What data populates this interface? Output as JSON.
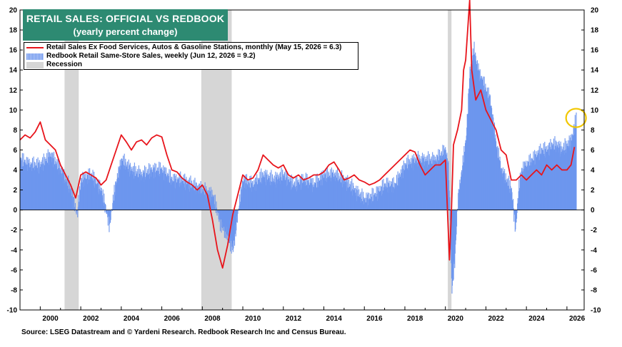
{
  "title": {
    "line1": "RETAIL SALES: OFFICIAL VS REDBOOK",
    "line2": "(yearly percent change)"
  },
  "legend": [
    {
      "label": "Retail Sales Ex Food Services, Autos & Gasoline Stations, monthly (May 15, 2026 = 6.3)",
      "color": "#e8141b",
      "kind": "line"
    },
    {
      "label": "Redbook Retail Same-Store Sales, weekly (Jun 12, 2026 = 9.2)",
      "color": "#6d96ee",
      "kind": "bars"
    },
    {
      "label": "Recession",
      "color": "#d6d6d6",
      "kind": "band"
    }
  ],
  "source": "Source: LSEG Datastream and © Yardeni Research. Redbook Research Inc and Census Bureau.",
  "colors": {
    "official": "#e8141b",
    "redbook": "#6d96ee",
    "recession": "#d6d6d6",
    "highlight": "#f2c700"
  },
  "chart_data": {
    "type": "line",
    "xlim": [
      1999.0,
      2026.85
    ],
    "ylim": [
      -10,
      20
    ],
    "x_ticks": [
      "2000",
      "2002",
      "2004",
      "2006",
      "2008",
      "2010",
      "2012",
      "2014",
      "2016",
      "2018",
      "2020",
      "2022",
      "2024",
      "2026"
    ],
    "y_ticks": [
      "-10",
      "-8",
      "-6",
      "-4",
      "-2",
      "0",
      "2",
      "4",
      "6",
      "8",
      "10",
      "12",
      "14",
      "16",
      "18",
      "20"
    ],
    "grid": false,
    "legend_position": "top-left",
    "recessions": [
      [
        2001.2,
        2001.9
      ],
      [
        2007.95,
        2009.45
      ],
      [
        2020.12,
        2020.3
      ]
    ],
    "highlight": {
      "x": 2026.45,
      "y": 9.2
    },
    "series": [
      {
        "name": "Retail Sales Ex Food Services, Autos & Gasoline Stations, monthly (May 15, 2026 = 6.3)",
        "type": "line",
        "x": [
          1999.0,
          1999.25,
          1999.5,
          1999.75,
          2000.0,
          2000.25,
          2000.5,
          2000.75,
          2001.0,
          2001.25,
          2001.5,
          2001.75,
          2002.0,
          2002.25,
          2002.5,
          2002.75,
          2003.0,
          2003.25,
          2003.5,
          2003.75,
          2004.0,
          2004.25,
          2004.5,
          2004.75,
          2005.0,
          2005.25,
          2005.5,
          2005.75,
          2006.0,
          2006.25,
          2006.5,
          2006.75,
          2007.0,
          2007.25,
          2007.5,
          2007.75,
          2008.0,
          2008.25,
          2008.5,
          2008.75,
          2009.0,
          2009.25,
          2009.5,
          2009.75,
          2010.0,
          2010.25,
          2010.5,
          2010.75,
          2011.0,
          2011.25,
          2011.5,
          2011.75,
          2012.0,
          2012.25,
          2012.5,
          2012.75,
          2013.0,
          2013.25,
          2013.5,
          2013.75,
          2014.0,
          2014.25,
          2014.5,
          2014.75,
          2015.0,
          2015.25,
          2015.5,
          2015.75,
          2016.0,
          2016.25,
          2016.5,
          2016.75,
          2017.0,
          2017.25,
          2017.5,
          2017.75,
          2018.0,
          2018.25,
          2018.5,
          2018.75,
          2019.0,
          2019.25,
          2019.5,
          2019.75,
          2020.0,
          2020.2,
          2020.3,
          2020.4,
          2020.6,
          2020.8,
          2020.9,
          2021.0,
          2021.2,
          2021.3,
          2021.5,
          2021.75,
          2022.0,
          2022.25,
          2022.5,
          2022.75,
          2023.0,
          2023.25,
          2023.5,
          2023.75,
          2024.0,
          2024.25,
          2024.5,
          2024.75,
          2025.0,
          2025.25,
          2025.5,
          2025.75,
          2026.0,
          2026.2,
          2026.37
        ],
        "values": [
          7.0,
          7.5,
          7.2,
          7.8,
          8.8,
          7.0,
          6.5,
          6.0,
          4.5,
          3.5,
          2.5,
          1.2,
          3.5,
          3.8,
          3.5,
          3.2,
          2.5,
          3.0,
          4.5,
          6.0,
          7.5,
          6.8,
          6.0,
          6.8,
          7.0,
          6.5,
          7.2,
          7.5,
          7.3,
          5.5,
          4.0,
          3.8,
          3.2,
          2.8,
          2.5,
          2.0,
          2.5,
          1.5,
          -1.0,
          -4.0,
          -5.8,
          -3.5,
          -0.5,
          1.5,
          3.5,
          3.0,
          3.2,
          4.0,
          5.5,
          5.0,
          4.5,
          4.2,
          4.5,
          3.5,
          3.2,
          3.5,
          3.0,
          3.2,
          3.5,
          3.5,
          3.8,
          4.5,
          4.8,
          4.0,
          3.0,
          3.2,
          3.5,
          3.0,
          2.8,
          2.5,
          2.7,
          3.0,
          3.5,
          4.0,
          4.5,
          5.0,
          5.5,
          6.0,
          5.8,
          4.5,
          3.5,
          4.0,
          4.5,
          4.5,
          5.0,
          -5.0,
          0.0,
          6.5,
          8.0,
          10.0,
          14.0,
          15.0,
          21.0,
          14.0,
          11.0,
          12.0,
          10.0,
          9.0,
          8.0,
          6.0,
          5.5,
          3.0,
          3.0,
          3.5,
          3.0,
          3.5,
          4.0,
          3.5,
          4.5,
          4.0,
          4.5,
          4.0,
          4.0,
          4.5,
          6.3
        ]
      },
      {
        "name": "Redbook Retail Same-Store Sales, weekly (Jun 12, 2026 = 9.2)",
        "type": "bar",
        "x": [
          1999.0,
          1999.5,
          2000.0,
          2000.5,
          2001.0,
          2001.5,
          2001.8,
          2002.0,
          2002.5,
          2003.0,
          2003.4,
          2003.7,
          2004.0,
          2004.5,
          2005.0,
          2005.5,
          2006.0,
          2006.5,
          2007.0,
          2007.5,
          2008.0,
          2008.5,
          2008.9,
          2009.2,
          2009.5,
          2009.8,
          2010.0,
          2010.5,
          2011.0,
          2011.5,
          2012.0,
          2012.5,
          2013.0,
          2013.5,
          2014.0,
          2014.5,
          2015.0,
          2015.5,
          2016.0,
          2016.5,
          2017.0,
          2017.5,
          2018.0,
          2018.5,
          2019.0,
          2019.5,
          2020.0,
          2020.15,
          2020.3,
          2020.45,
          2020.6,
          2020.8,
          2021.0,
          2021.2,
          2021.4,
          2021.6,
          2021.8,
          2022.0,
          2022.2,
          2022.5,
          2022.75,
          2023.0,
          2023.25,
          2023.45,
          2023.6,
          2023.75,
          2024.0,
          2024.25,
          2024.5,
          2024.75,
          2025.0,
          2025.25,
          2025.5,
          2025.75,
          2026.0,
          2026.2,
          2026.45
        ],
        "values": [
          5.0,
          4.5,
          4.5,
          5.5,
          4.0,
          2.0,
          -0.5,
          3.0,
          3.5,
          2.0,
          -1.5,
          2.5,
          5.0,
          4.0,
          3.5,
          4.0,
          4.0,
          3.0,
          3.0,
          2.5,
          2.0,
          1.5,
          -1.5,
          -2.5,
          -4.0,
          0.5,
          3.0,
          2.5,
          3.5,
          3.0,
          3.5,
          2.5,
          3.0,
          2.5,
          3.5,
          3.5,
          3.0,
          2.0,
          1.0,
          1.5,
          2.5,
          2.5,
          4.5,
          5.0,
          5.0,
          5.0,
          6.0,
          4.0,
          -8.0,
          -5.0,
          1.0,
          4.0,
          7.0,
          14.0,
          16.0,
          14.0,
          13.0,
          12.0,
          11.0,
          6.5,
          4.0,
          3.0,
          2.0,
          -2.0,
          2.0,
          4.0,
          4.5,
          5.0,
          5.5,
          6.0,
          6.0,
          6.5,
          6.5,
          6.0,
          6.5,
          7.0,
          9.2
        ]
      }
    ]
  }
}
